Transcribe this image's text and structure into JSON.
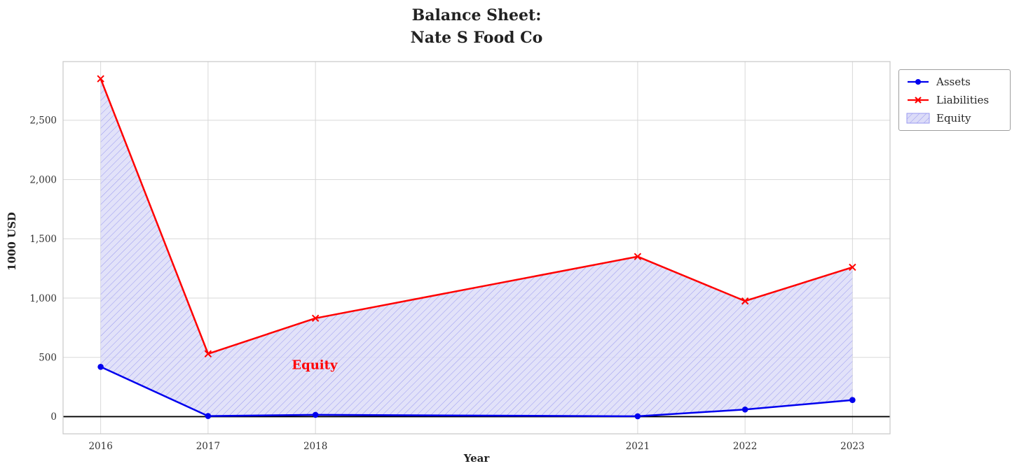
{
  "title": {
    "line1": "Balance Sheet:",
    "line2": "Nate S Food Co"
  },
  "chart_data": {
    "type": "line",
    "title": "Balance Sheet:\nNate S Food Co",
    "xlabel": "Year",
    "ylabel": "1000 USD",
    "x": [
      2016,
      2017,
      2018,
      2021,
      2022,
      2023
    ],
    "series": [
      {
        "name": "Assets",
        "color": "#0000ee",
        "marker": "circle",
        "line_width": 2.5,
        "values": [
          420,
          5,
          15,
          3,
          60,
          140
        ]
      },
      {
        "name": "Liabilities",
        "color": "#ff0000",
        "marker": "x",
        "line_width": 2.5,
        "values": [
          2850,
          530,
          830,
          1350,
          975,
          1260
        ]
      }
    ],
    "fill_between": {
      "label": "Equity",
      "between": [
        "Assets",
        "Liabilities"
      ],
      "fill_color": "#dcdcf8",
      "hatch_color": "#9a9af0",
      "hatch": "diagonal"
    },
    "annotation": {
      "text": "Equity",
      "x": 2017.78,
      "y": 400,
      "color": "#ff0000"
    },
    "axhline": {
      "y": 0,
      "color": "#000000"
    },
    "xticks": {
      "values": [
        2016,
        2017,
        2018,
        2021,
        2022,
        2023
      ],
      "labels": [
        "2016",
        "2017",
        "2018",
        "2021",
        "2022",
        "2023"
      ]
    },
    "yticks": {
      "values": [
        0,
        500,
        1000,
        1500,
        2000,
        2500
      ],
      "labels": [
        "0",
        "500",
        "1,000",
        "1,500",
        "2,000",
        "2,500"
      ]
    },
    "xlim": [
      2015.65,
      2023.35
    ],
    "ylim": [
      -145,
      2995
    ],
    "grid": true,
    "legend": {
      "position": "upper-right-outside",
      "entries": [
        "Assets",
        "Liabilities",
        "Equity"
      ]
    }
  }
}
